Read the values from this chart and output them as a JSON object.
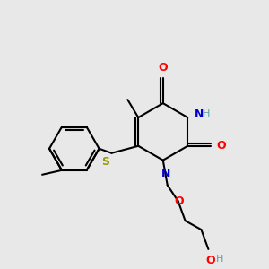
{
  "background_color": "#e8e8e8",
  "bond_color": "#000000",
  "bond_width": 1.5,
  "colors": {
    "N": "#0000cc",
    "O": "#ff0000",
    "S": "#999900",
    "C": "#000000",
    "H_label": "#5f9ea0"
  },
  "font_size": 9
}
